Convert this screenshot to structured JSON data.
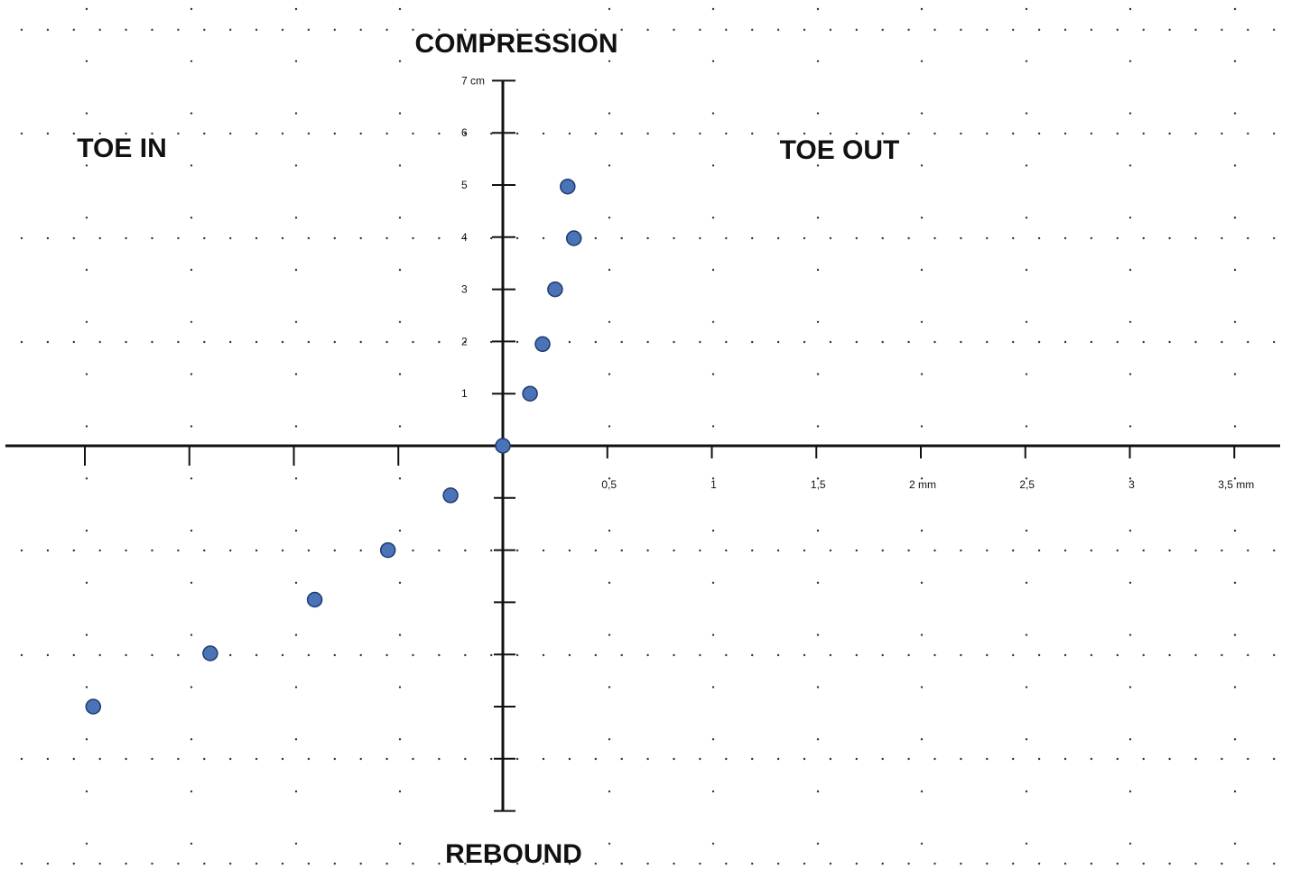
{
  "chart_data": {
    "type": "scatter",
    "labels": {
      "top": "COMPRESSION",
      "bottom": "REBOUND",
      "left": "TOE IN",
      "right": "TOE OUT"
    },
    "x_ticks": [
      {
        "value": 0.5,
        "label": "0,5"
      },
      {
        "value": 1,
        "label": "1"
      },
      {
        "value": 1.5,
        "label": "1,5"
      },
      {
        "value": 2,
        "label": "2 mm"
      },
      {
        "value": 2.5,
        "label": "2,5"
      },
      {
        "value": 3,
        "label": "3"
      },
      {
        "value": 3.5,
        "label": "3,5 mm"
      }
    ],
    "y_ticks": [
      {
        "value": 1,
        "label": "1"
      },
      {
        "value": 2,
        "label": "2"
      },
      {
        "value": 3,
        "label": "3"
      },
      {
        "value": 4,
        "label": "4"
      },
      {
        "value": 5,
        "label": "5"
      },
      {
        "value": 6,
        "label": "6"
      },
      {
        "value": 7,
        "label": "7 cm"
      }
    ],
    "xlim": [
      -2,
      3.5
    ],
    "ylim": [
      -7,
      7
    ],
    "grid": "dotted",
    "point_color": "#4a73b8",
    "points": [
      {
        "x": 0,
        "y": 0
      },
      {
        "x": 0.13,
        "y": 1
      },
      {
        "x": 0.19,
        "y": 1.95
      },
      {
        "x": 0.25,
        "y": 3.0
      },
      {
        "x": 0.34,
        "y": 3.98
      },
      {
        "x": 0.31,
        "y": 4.97
      },
      {
        "x": -0.25,
        "y": -0.95
      },
      {
        "x": -0.55,
        "y": -2.0
      },
      {
        "x": -0.9,
        "y": -2.95
      },
      {
        "x": -1.4,
        "y": -3.98
      },
      {
        "x": -1.96,
        "y": -5.0
      }
    ]
  }
}
